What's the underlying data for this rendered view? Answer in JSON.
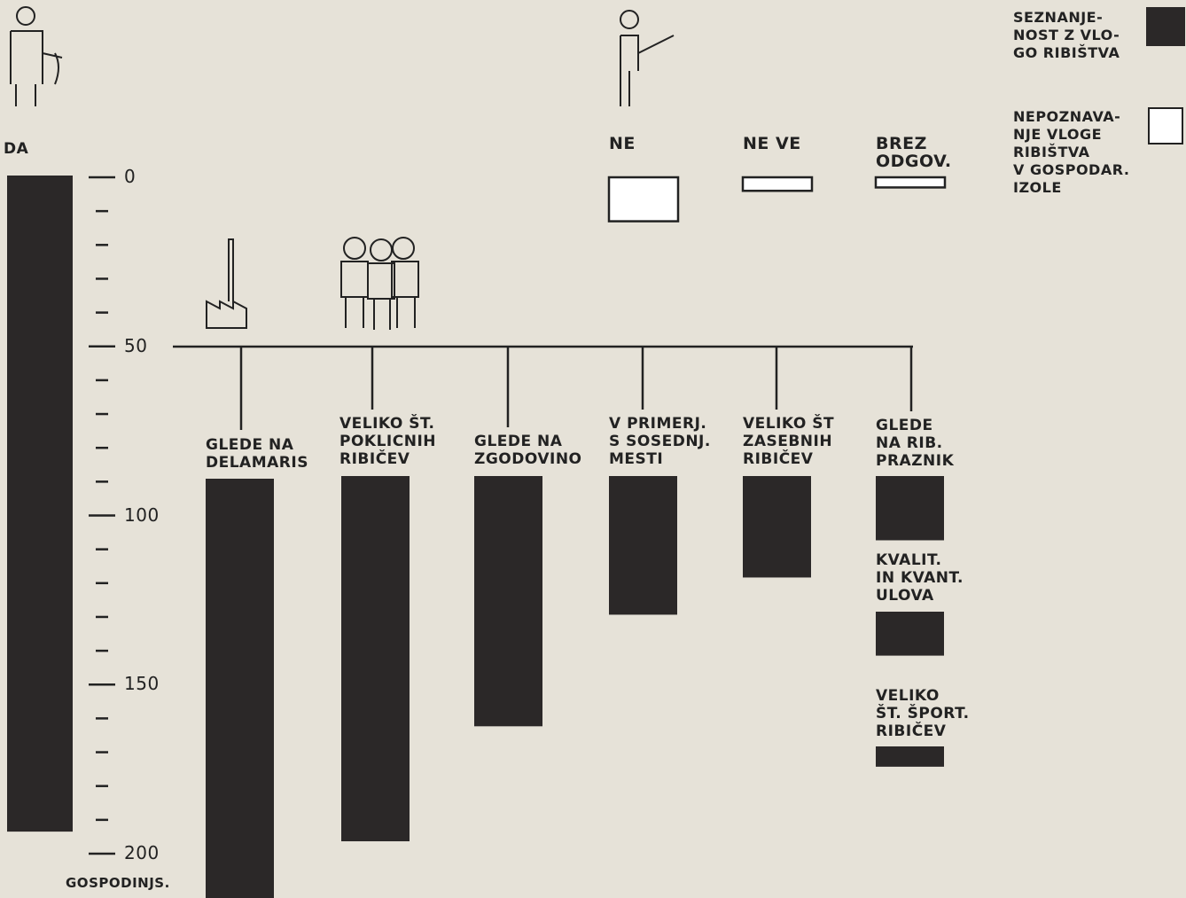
{
  "chart_data": {
    "type": "bar",
    "axis_label": "GOSPODINJS.",
    "ylim": [
      0,
      200
    ],
    "yticks": [
      0,
      50,
      100,
      150,
      200
    ],
    "minor_yticks": [
      10,
      20,
      30,
      40,
      60,
      70,
      80,
      90,
      110,
      120,
      130,
      140,
      160,
      170,
      180,
      190
    ],
    "series": [
      {
        "name": "SEZNANJE-\nNOST Z VLO-\nGO RIBIŠTVA",
        "color": "#2b2828",
        "categories": [
          "DA",
          "GLEDE NA\nDELAMARIS",
          "VELIKO ŠT.\nPOKLICNIH\nRIBIČEV",
          "GLEDE NA\nZGODOVINO",
          "V PRIMERJ.\nS SOSEDNJ.\nMESTI",
          "VELIKO ŠT\nZASEBNIH\nRIBIČEV",
          "GLEDE\nNA RIB.\nPRAZNIK",
          "KVALIT.\nIN KVANT.\nULOVA",
          "VELIKO\nŠT. ŠPORT.\nRIBIČEV"
        ],
        "values": [
          194,
          124,
          108,
          74,
          41,
          30,
          19,
          13,
          6
        ]
      },
      {
        "name": "NEPOZNAVA-\nNJE VLOGE\nRIBIŠTVA\nV GOSPODAR.\nIZOLE",
        "color": "#ffffff",
        "categories": [
          "NE",
          "NE VE",
          "BREZ\nODGOV."
        ],
        "values": [
          13,
          4,
          3
        ]
      }
    ]
  }
}
